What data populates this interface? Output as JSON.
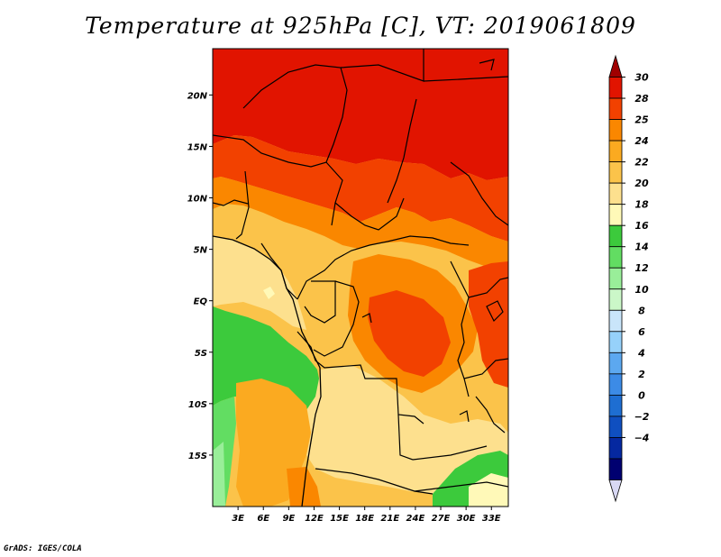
{
  "title": "Temperature at 925hPa [C], VT: 2019061809",
  "footer": "GrADS: IGES/COLA",
  "map": {
    "lon_range": [
      0,
      35
    ],
    "lat_range": [
      -20,
      24.5
    ],
    "lon_ticks": [
      "3E",
      "6E",
      "9E",
      "12E",
      "15E",
      "18E",
      "21E",
      "24E",
      "27E",
      "30E",
      "33E"
    ],
    "lat_ticks": [
      "20N",
      "15N",
      "10N",
      "5N",
      "EQ",
      "5S",
      "10S",
      "15S"
    ]
  },
  "colorbar": {
    "labels": [
      "30",
      "28",
      "25",
      "24",
      "22",
      "20",
      "18",
      "16",
      "14",
      "12",
      "10",
      "8",
      "6",
      "4",
      "2",
      "0",
      "−2",
      "−4"
    ],
    "colors": [
      "#a00000",
      "#e11400",
      "#f24100",
      "#fa8700",
      "#fbaa20",
      "#fbc34a",
      "#fde08e",
      "#fff9b8",
      "#3cca3c",
      "#62dd62",
      "#99ee99",
      "#cbf7c8",
      "#c9e5fa",
      "#96d1fa",
      "#5ca8f0",
      "#3c8be6",
      "#1e6ed2",
      "#0f4fc0",
      "#0528a0",
      "#000070",
      "#d8d8f4"
    ]
  }
}
